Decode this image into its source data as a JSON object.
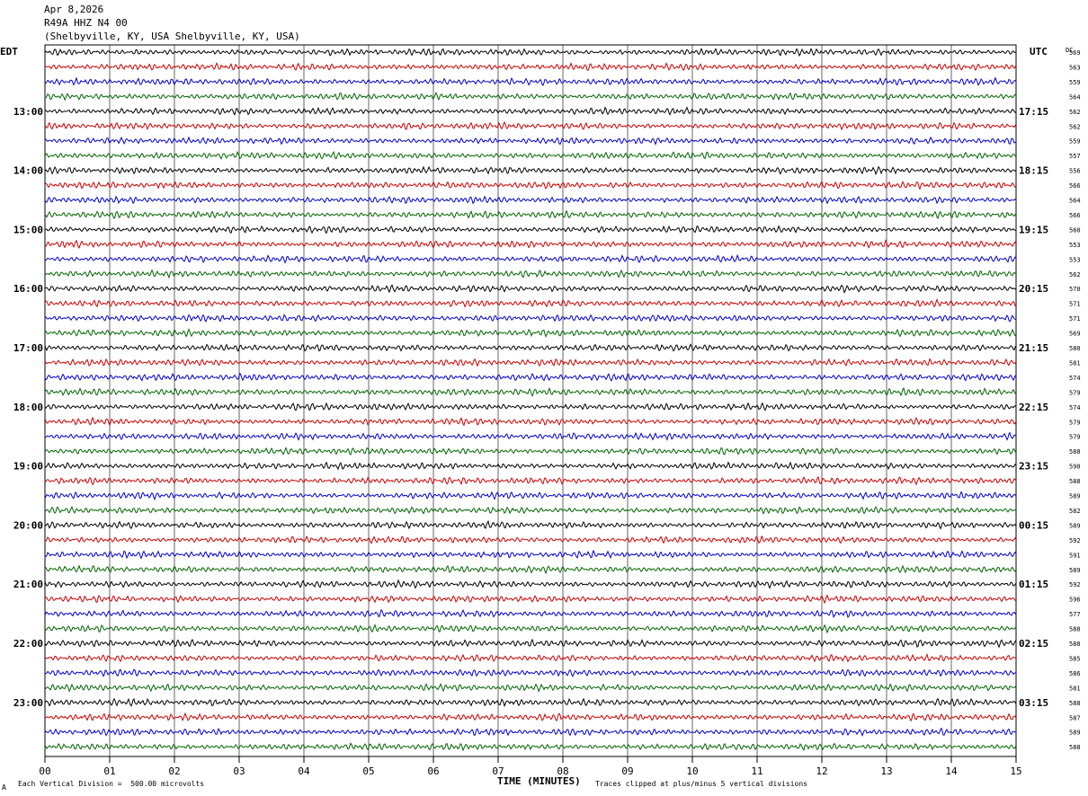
{
  "header": {
    "date": "Apr 8,2026",
    "station": "R49A HHZ N4 00",
    "location": "(Shelbyville, KY, USA Shelbyville, KY, USA)"
  },
  "left_tz": "EDT",
  "right_tz": "UTC",
  "dc_label": "DC",
  "colors": {
    "traces": [
      "#000000",
      "#cc0000",
      "#0000cc",
      "#006600"
    ],
    "grid": "#000000"
  },
  "chart_data": {
    "type": "line",
    "xlabel": "TIME (MINUTES)",
    "x_ticks": [
      "00",
      "01",
      "02",
      "03",
      "04",
      "05",
      "06",
      "07",
      "08",
      "09",
      "10",
      "11",
      "12",
      "13",
      "14",
      "15"
    ],
    "xlim": [
      0,
      15
    ],
    "rows_per_hour": 4,
    "left_hour_labels": [
      "13:00",
      "14:00",
      "15:00",
      "16:00",
      "17:00",
      "18:00",
      "19:00",
      "20:00",
      "21:00",
      "22:00",
      "23:00"
    ],
    "right_hour_labels": [
      "17:15",
      "18:15",
      "19:15",
      "20:15",
      "21:15",
      "22:15",
      "23:15",
      "00:15",
      "01:15",
      "02:15",
      "03:15"
    ],
    "dc_offsets": [
      569,
      563,
      559,
      564,
      562,
      562,
      559,
      557,
      556,
      566,
      564,
      566,
      560,
      553,
      553,
      562,
      570,
      571,
      571,
      569,
      580,
      581,
      574,
      579,
      574,
      579,
      579,
      588,
      590,
      588,
      589,
      582,
      589,
      592,
      591,
      589,
      592,
      596,
      577,
      588,
      588,
      585,
      586,
      581,
      588,
      587,
      589,
      588
    ]
  },
  "footer": {
    "scale_note": "Each Vertical Division =  500.00 microvolts",
    "clip_note": "Traces clipped at plus/minus 5 vertical divisions",
    "corner_mark": "A"
  }
}
